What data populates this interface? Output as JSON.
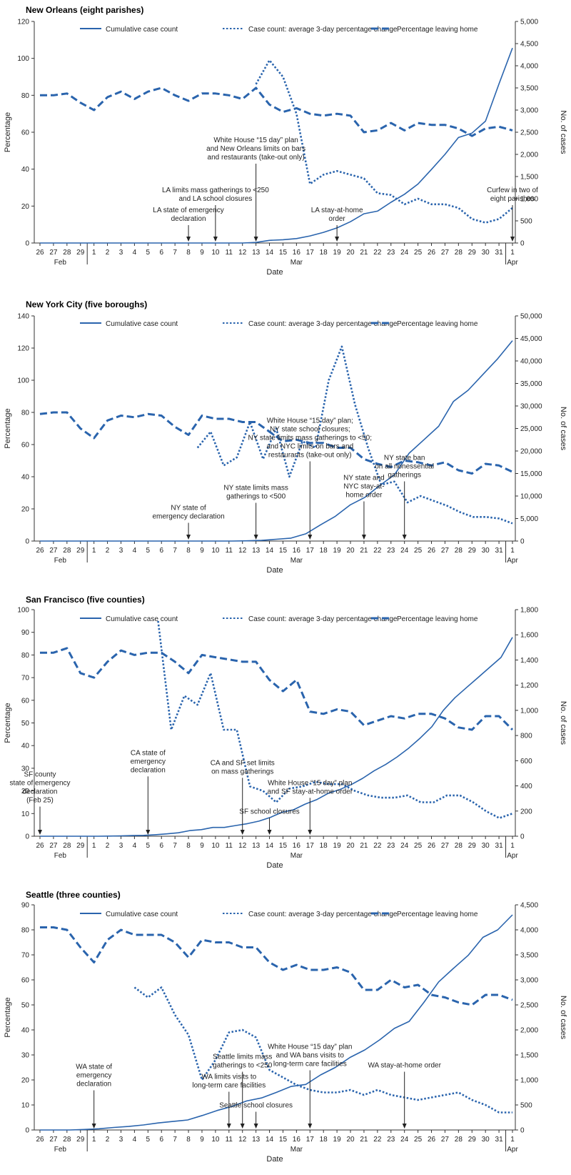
{
  "colors": {
    "series": "#2a64ad",
    "axis": "#333333",
    "text": "#222222",
    "background": "#ffffff"
  },
  "legend_labels": [
    "Cumulative case count",
    "Case count: average 3-day percentage change",
    "Percentage leaving home"
  ],
  "date_categories": [
    "26",
    "27",
    "28",
    "29",
    "1",
    "2",
    "3",
    "4",
    "5",
    "6",
    "7",
    "8",
    "9",
    "10",
    "11",
    "12",
    "13",
    "14",
    "15",
    "16",
    "17",
    "18",
    "19",
    "20",
    "21",
    "22",
    "23",
    "24",
    "25",
    "26",
    "27",
    "28",
    "29",
    "30",
    "31",
    "1"
  ],
  "month_labels": {
    "feb": "Feb",
    "mar": "Mar",
    "apr": "Apr"
  },
  "chart_data": [
    {
      "type": "line",
      "title": "New Orleans (eight parishes)",
      "xlabel": "Date",
      "ylabel": "Percentage",
      "y2label": "No. of cases",
      "ylim": [
        0,
        120
      ],
      "yticks": [
        0,
        20,
        40,
        60,
        80,
        100,
        120
      ],
      "y2lim": [
        0,
        5000
      ],
      "y2ticks": [
        "0",
        "500",
        "1,000",
        "1,500",
        "2,000",
        "2,500",
        "3,000",
        "3,500",
        "4,000",
        "4,500",
        "5,000"
      ],
      "legend_position": "top",
      "series": [
        {
          "name": "Cumulative case count",
          "style": "solid",
          "axis": "right",
          "values": [
            0,
            0,
            0,
            0,
            0,
            0,
            0,
            0,
            0,
            0,
            0,
            0,
            0,
            0,
            0,
            0,
            13,
            60,
            75,
            100,
            160,
            240,
            340,
            480,
            660,
            720,
            920,
            1100,
            1330,
            1660,
            2000,
            2380,
            2480,
            2750,
            3590,
            4400
          ]
        },
        {
          "name": "Case count: average 3-day percentage change",
          "style": "dotted",
          "axis": "left",
          "values": [
            null,
            null,
            null,
            null,
            null,
            null,
            null,
            null,
            null,
            null,
            null,
            null,
            null,
            null,
            null,
            null,
            86,
            99,
            90,
            70,
            32,
            37,
            39,
            37,
            35,
            27,
            26,
            21,
            24,
            21,
            21,
            19,
            13,
            11,
            13,
            19
          ]
        },
        {
          "name": "Percentage leaving home",
          "style": "dashed",
          "axis": "left",
          "values": [
            80,
            80,
            81,
            76,
            72,
            79,
            82,
            78,
            82,
            84,
            80,
            77,
            81,
            81,
            80,
            78,
            84,
            75,
            71,
            73,
            70,
            69,
            70,
            69,
            60,
            61,
            65,
            61,
            65,
            64,
            64,
            62,
            58,
            62,
            63,
            61
          ]
        }
      ],
      "annotations": [
        {
          "date_index": 11,
          "lines": [
            "LA state of emergency",
            "declaration"
          ]
        },
        {
          "date_index": 13,
          "lines": [
            "LA limits mass gatherings to <250",
            "and LA school closures"
          ]
        },
        {
          "date_index": 16,
          "lines": [
            "White House “15 day” plan",
            "and New Orleans limits on bars",
            "and restaurants (take-out only)"
          ]
        },
        {
          "date_index": 22,
          "lines": [
            "LA stay-at-home",
            "order"
          ]
        },
        {
          "date_index": 35,
          "lines": [
            "Curfew in two of",
            "eight parishes"
          ]
        }
      ]
    },
    {
      "type": "line",
      "title": "New York City (five boroughs)",
      "xlabel": "Date",
      "ylabel": "Percentage",
      "y2label": "No. of cases",
      "ylim": [
        0,
        140
      ],
      "yticks": [
        0,
        20,
        40,
        60,
        80,
        100,
        120,
        140
      ],
      "y2lim": [
        0,
        50000
      ],
      "y2ticks": [
        "0",
        "5,000",
        "10,000",
        "15,000",
        "20,000",
        "25,000",
        "30,000",
        "35,000",
        "40,000",
        "45,000",
        "50,000"
      ],
      "legend_position": "top",
      "series": [
        {
          "name": "Cumulative case count",
          "style": "solid",
          "axis": "right",
          "values": [
            0,
            0,
            0,
            0,
            0,
            0,
            0,
            0,
            0,
            0,
            0,
            0,
            0,
            0,
            50,
            150,
            400,
            650,
            1600,
            3600,
            5500,
            8000,
            9700,
            12300,
            14700,
            19500,
            22500,
            25500,
            31000,
            33500,
            37000,
            40500,
            44500
          ],
          "x_offset": 3
        },
        {
          "name": "Case count: average 3-day percentage change",
          "style": "dotted",
          "axis": "left",
          "values": [
            null,
            null,
            null,
            null,
            null,
            null,
            null,
            null,
            null,
            null,
            null,
            null,
            58,
            68,
            47,
            52,
            74,
            51,
            70,
            40,
            62,
            58,
            100,
            121,
            85,
            58,
            35,
            37,
            24,
            28,
            25,
            22,
            18,
            15,
            15,
            14,
            11
          ]
        },
        {
          "name": "Percentage leaving home",
          "style": "dashed",
          "axis": "left",
          "values": [
            79,
            80,
            80,
            70,
            64,
            75,
            78,
            77,
            79,
            78,
            71,
            66,
            78,
            76,
            76,
            74,
            74,
            68,
            62,
            63,
            61,
            61,
            58,
            58,
            51,
            48,
            46,
            50,
            49,
            47,
            49,
            44,
            42,
            48,
            47,
            43
          ]
        }
      ],
      "annotations": [
        {
          "date_index": 11,
          "lines": [
            "NY state of",
            "emergency declaration"
          ]
        },
        {
          "date_index": 16,
          "lines": [
            "NY state limits mass",
            "gatherings to <500"
          ]
        },
        {
          "date_index": 20,
          "lines": [
            "White House “15 day” plan;",
            "NY state school closures;",
            "NY state limits mass gatherings to <50;",
            "and NYC limits on bars and",
            "restaurants (take-out only)"
          ]
        },
        {
          "date_index": 24,
          "lines": [
            "NY state and",
            "NYC stay-at-",
            "home order"
          ]
        },
        {
          "date_index": 27,
          "lines": [
            "NY state ban",
            "on all nonessential",
            "gatherings"
          ]
        }
      ]
    },
    {
      "type": "line",
      "title": "San Francisco (five counties)",
      "xlabel": "Date",
      "ylabel": "Percentage",
      "y2label": "No. of cases",
      "ylim": [
        0,
        100
      ],
      "yticks": [
        0,
        10,
        20,
        30,
        40,
        50,
        60,
        70,
        80,
        90,
        100
      ],
      "y2lim": [
        0,
        1800
      ],
      "y2ticks": [
        "0",
        "200",
        "400",
        "600",
        "800",
        "1,000",
        "1,200",
        "1,400",
        "1,600",
        "1,800"
      ],
      "legend_position": "top",
      "series": [
        {
          "name": "Cumulative case count",
          "style": "solid",
          "axis": "right",
          "values": [
            0,
            0,
            0,
            0,
            0,
            0,
            1,
            3,
            5,
            7,
            12,
            19,
            27,
            45,
            52,
            70,
            70,
            85,
            100,
            120,
            150,
            190,
            210,
            255,
            290,
            340,
            370,
            410,
            460,
            520,
            570,
            630,
            700,
            780,
            870,
            1000,
            1100,
            1180,
            1260,
            1340,
            1420,
            1580
          ],
          "x_offset": -6
        },
        {
          "name": "Case count: average 3-day percentage change",
          "style": "dotted",
          "axis": "left",
          "values": [
            null,
            null,
            null,
            null,
            null,
            null,
            null,
            null,
            null,
            95,
            47,
            62,
            58,
            72,
            47,
            47,
            22,
            20,
            15,
            21,
            22,
            24,
            23,
            23,
            20,
            18,
            17,
            17,
            18,
            15,
            15,
            18,
            18,
            15,
            11,
            8,
            10
          ]
        },
        {
          "name": "Percentage leaving home",
          "style": "dashed",
          "axis": "left",
          "values": [
            81,
            81,
            83,
            72,
            70,
            77,
            82,
            80,
            81,
            81,
            77,
            72,
            80,
            79,
            78,
            77,
            77,
            69,
            64,
            69,
            55,
            54,
            56,
            55,
            49,
            51,
            53,
            52,
            54,
            54,
            52,
            48,
            47,
            53,
            53,
            47
          ]
        }
      ],
      "annotations": [
        {
          "date_index": 0,
          "lines": [
            "SF county",
            "state of emergency",
            "declaration",
            "(Feb 25)"
          ]
        },
        {
          "date_index": 8,
          "lines": [
            "CA state of",
            "emergency",
            "declaration"
          ]
        },
        {
          "date_index": 15,
          "lines": [
            "CA and SF set limits",
            "on mass gatherings"
          ]
        },
        {
          "date_index": 17,
          "lines": [
            "SF school closures"
          ]
        },
        {
          "date_index": 20,
          "lines": [
            "White House “15 day” plan",
            "and SF stay-at-home order"
          ]
        }
      ]
    },
    {
      "type": "line",
      "title": "Seattle (three counties)",
      "xlabel": "Date",
      "ylabel": "Percentage",
      "y2label": "No. of cases",
      "ylim": [
        0,
        90
      ],
      "yticks": [
        0,
        10,
        20,
        30,
        40,
        50,
        60,
        70,
        80,
        90
      ],
      "y2lim": [
        0,
        4500
      ],
      "y2ticks": [
        "0",
        "500",
        "1,000",
        "1,500",
        "2,000",
        "2,500",
        "3,000",
        "3,500",
        "4,000",
        "4,500"
      ],
      "legend_position": "top",
      "series": [
        {
          "name": "Cumulative case count",
          "style": "solid",
          "axis": "right",
          "values": [
            0,
            0,
            0,
            10,
            25,
            50,
            70,
            100,
            140,
            170,
            200,
            290,
            390,
            470,
            580,
            640,
            750,
            870,
            910,
            1100,
            1250,
            1450,
            1600,
            1800,
            2030,
            2170,
            2550,
            2960,
            3230,
            3490,
            3850,
            4000,
            4300
          ],
          "x_offset": 3
        },
        {
          "name": "Case count: average 3-day percentage change",
          "style": "dotted",
          "axis": "left",
          "values": [
            null,
            null,
            null,
            null,
            null,
            null,
            null,
            57,
            53,
            57,
            46,
            38,
            20,
            28,
            39,
            40,
            37,
            24,
            21,
            18,
            16,
            15,
            15,
            16,
            14,
            16,
            14,
            13,
            12,
            13,
            14,
            15,
            12,
            10,
            7,
            7
          ]
        },
        {
          "name": "Percentage leaving home",
          "style": "dashed",
          "axis": "left",
          "values": [
            81,
            81,
            80,
            73,
            67,
            76,
            80,
            78,
            78,
            78,
            75,
            69,
            76,
            75,
            75,
            73,
            73,
            67,
            64,
            66,
            64,
            64,
            65,
            63,
            56,
            56,
            60,
            57,
            58,
            54,
            53,
            51,
            50,
            54,
            54,
            52
          ]
        }
      ],
      "annotations": [
        {
          "date_index": 4,
          "lines": [
            "WA state of",
            "emergency",
            "declaration"
          ]
        },
        {
          "date_index": 14,
          "lines": [
            "WA limits visits to",
            "long-term care facilities"
          ]
        },
        {
          "date_index": 15,
          "lines": [
            "Seattle limits mass",
            "gatherings to <250"
          ]
        },
        {
          "date_index": 16,
          "lines": [
            "Seattle school closures"
          ]
        },
        {
          "date_index": 20,
          "lines": [
            "White House “15 day” plan",
            "and WA bans visits to",
            "long-term care facilities"
          ]
        },
        {
          "date_index": 27,
          "lines": [
            "WA stay-at-home order"
          ]
        }
      ]
    }
  ]
}
